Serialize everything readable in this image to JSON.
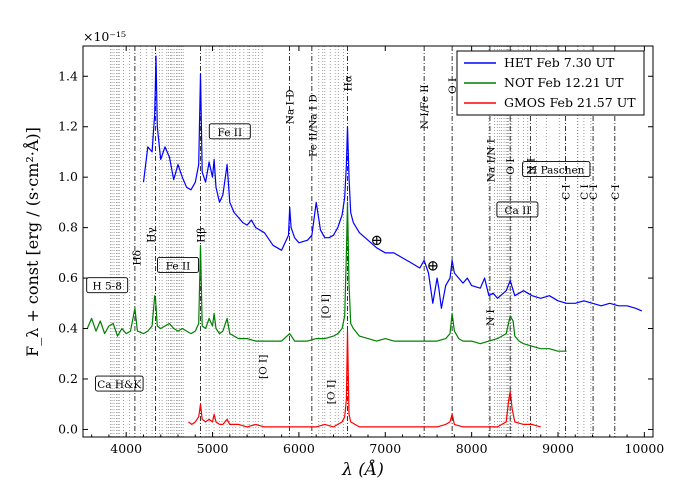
{
  "chart_data": {
    "type": "line",
    "title": "",
    "xlabel": "λ (Å)",
    "ylabel": "F_λ + const [erg / (s·cm²·Å)]",
    "yscale_label": "×10⁻¹⁵",
    "xlim": [
      3500,
      10100
    ],
    "ylim": [
      -0.03,
      1.52
    ],
    "xticks": [
      4000,
      5000,
      6000,
      7000,
      8000,
      9000,
      10000
    ],
    "xtick_labels": [
      "4000",
      "5000",
      "6000",
      "7000",
      "8000",
      "9000",
      "10000"
    ],
    "yticks": [
      0.0,
      0.2,
      0.4,
      0.6,
      0.8,
      1.0,
      1.2,
      1.4
    ],
    "ytick_labels": [
      "0.0",
      "0.2",
      "0.4",
      "0.6",
      "0.8",
      "1.0",
      "1.2",
      "1.4"
    ],
    "legend": {
      "position": "top-right"
    },
    "series": [
      {
        "name": "HET Feb 7.30 UT",
        "color": "#0000ff",
        "x": [
          4200,
          4250,
          4300,
          4330,
          4345,
          4360,
          4400,
          4450,
          4500,
          4550,
          4600,
          4650,
          4700,
          4750,
          4800,
          4840,
          4861,
          4880,
          4920,
          4960,
          5000,
          5018,
          5040,
          5080,
          5120,
          5169,
          5200,
          5250,
          5300,
          5350,
          5400,
          5450,
          5500,
          5600,
          5700,
          5800,
          5880,
          5893,
          5910,
          5950,
          6000,
          6100,
          6150,
          6200,
          6250,
          6300,
          6350,
          6400,
          6450,
          6500,
          6530,
          6550,
          6563,
          6580,
          6600,
          6630,
          6700,
          6800,
          6900,
          7000,
          7100,
          7200,
          7300,
          7400,
          7450,
          7500,
          7550,
          7600,
          7620,
          7650,
          7700,
          7750,
          7774,
          7800,
          7850,
          7900,
          7950,
          8000,
          8100,
          8150,
          8200,
          8250,
          8300,
          8400,
          8446,
          8500,
          8600,
          8700,
          8800,
          8900,
          9000,
          9100,
          9200,
          9300,
          9400,
          9500,
          9600,
          9700,
          9800,
          9900,
          9970
        ],
        "values": [
          0.98,
          1.12,
          1.1,
          1.25,
          1.48,
          1.2,
          1.07,
          1.12,
          1.08,
          0.99,
          1.05,
          1.0,
          0.96,
          0.95,
          0.98,
          1.05,
          1.41,
          1.02,
          0.98,
          1.06,
          1.0,
          1.07,
          0.96,
          0.9,
          0.93,
          1.05,
          0.9,
          0.86,
          0.84,
          0.82,
          0.81,
          0.83,
          0.8,
          0.78,
          0.73,
          0.71,
          0.77,
          0.88,
          0.8,
          0.76,
          0.74,
          0.75,
          0.77,
          0.9,
          0.79,
          0.76,
          0.76,
          0.77,
          0.8,
          0.85,
          0.92,
          1.05,
          1.2,
          1.0,
          0.86,
          0.82,
          0.78,
          0.75,
          0.72,
          0.7,
          0.7,
          0.68,
          0.66,
          0.64,
          0.67,
          0.62,
          0.5,
          0.6,
          0.56,
          0.48,
          0.57,
          0.6,
          0.67,
          0.62,
          0.6,
          0.58,
          0.6,
          0.57,
          0.56,
          0.6,
          0.53,
          0.54,
          0.52,
          0.55,
          0.59,
          0.53,
          0.55,
          0.53,
          0.52,
          0.53,
          0.51,
          0.5,
          0.5,
          0.51,
          0.5,
          0.49,
          0.5,
          0.49,
          0.49,
          0.48,
          0.47
        ]
      },
      {
        "name": "NOT Feb 12.21 UT",
        "color": "#008000",
        "x": [
          3550,
          3600,
          3650,
          3700,
          3750,
          3800,
          3850,
          3900,
          3950,
          4000,
          4050,
          4101,
          4130,
          4200,
          4250,
          4300,
          4330,
          4340,
          4360,
          4400,
          4450,
          4500,
          4550,
          4600,
          4650,
          4700,
          4750,
          4800,
          4840,
          4861,
          4880,
          4920,
          4960,
          5000,
          5018,
          5040,
          5080,
          5120,
          5169,
          5200,
          5250,
          5300,
          5400,
          5500,
          5600,
          5700,
          5800,
          5893,
          5950,
          6000,
          6100,
          6200,
          6300,
          6400,
          6450,
          6500,
          6530,
          6550,
          6563,
          6580,
          6600,
          6630,
          6700,
          6800,
          6900,
          7000,
          7100,
          7200,
          7300,
          7400,
          7500,
          7600,
          7700,
          7750,
          7774,
          7800,
          7850,
          7900,
          8000,
          8100,
          8200,
          8300,
          8400,
          8446,
          8480,
          8500,
          8550,
          8600,
          8700,
          8800,
          8900,
          9000,
          9100
        ],
        "values": [
          0.4,
          0.44,
          0.39,
          0.43,
          0.38,
          0.41,
          0.42,
          0.37,
          0.4,
          0.38,
          0.39,
          0.48,
          0.39,
          0.38,
          0.39,
          0.41,
          0.53,
          0.52,
          0.41,
          0.4,
          0.41,
          0.42,
          0.4,
          0.39,
          0.4,
          0.39,
          0.38,
          0.39,
          0.42,
          0.73,
          0.41,
          0.4,
          0.44,
          0.41,
          0.46,
          0.4,
          0.38,
          0.39,
          0.44,
          0.38,
          0.37,
          0.36,
          0.36,
          0.35,
          0.35,
          0.35,
          0.35,
          0.38,
          0.35,
          0.35,
          0.35,
          0.36,
          0.36,
          0.37,
          0.38,
          0.4,
          0.45,
          0.7,
          0.9,
          0.58,
          0.42,
          0.4,
          0.37,
          0.36,
          0.35,
          0.36,
          0.35,
          0.35,
          0.35,
          0.35,
          0.35,
          0.35,
          0.36,
          0.38,
          0.46,
          0.39,
          0.36,
          0.35,
          0.35,
          0.34,
          0.35,
          0.36,
          0.38,
          0.45,
          0.43,
          0.37,
          0.35,
          0.34,
          0.33,
          0.32,
          0.32,
          0.31,
          0.31
        ]
      },
      {
        "name": "GMOS Feb 21.57 UT",
        "color": "#ff0000",
        "x": [
          4720,
          4760,
          4800,
          4840,
          4861,
          4880,
          4920,
          4960,
          5000,
          5018,
          5040,
          5080,
          5120,
          5169,
          5200,
          5300,
          5400,
          5500,
          5600,
          5700,
          5800,
          5900,
          6000,
          6100,
          6200,
          6300,
          6400,
          6450,
          6500,
          6530,
          6550,
          6563,
          6580,
          6600,
          6650,
          6700,
          6800,
          6900,
          7000,
          7100,
          7200,
          7300,
          7400,
          7500,
          7600,
          7700,
          7750,
          7774,
          7800,
          7900,
          8000,
          8100,
          8200,
          8300,
          8400,
          8430,
          8446,
          8470,
          8500,
          8600,
          8700,
          8800
        ],
        "values": [
          0.03,
          0.02,
          0.03,
          0.05,
          0.1,
          0.04,
          0.03,
          0.04,
          0.03,
          0.06,
          0.03,
          0.02,
          0.02,
          0.04,
          0.02,
          0.02,
          0.01,
          0.02,
          0.01,
          0.01,
          0.01,
          0.01,
          0.01,
          0.01,
          0.01,
          0.02,
          0.01,
          0.02,
          0.03,
          0.05,
          0.12,
          0.39,
          0.06,
          0.03,
          0.02,
          0.01,
          0.01,
          0.01,
          0.01,
          0.01,
          0.01,
          0.01,
          0.01,
          0.01,
          0.01,
          0.02,
          0.03,
          0.06,
          0.02,
          0.01,
          0.01,
          0.01,
          0.01,
          0.01,
          0.03,
          0.12,
          0.15,
          0.08,
          0.03,
          0.02,
          0.02,
          0.01
        ]
      }
    ],
    "dashdot_lines": [
      4101,
      4340,
      4861,
      5890,
      6150,
      6563,
      7450,
      7774,
      8212,
      8446,
      8680,
      9088,
      9406,
      9658
    ],
    "dotted_lines": [
      3820,
      3836,
      3860,
      3889,
      3905,
      3920,
      3970,
      4040,
      4165,
      4233,
      4300,
      4385,
      4416,
      4470,
      4490,
      4515,
      4530,
      4555,
      4584,
      4600,
      4620,
      4640,
      4660,
      4925,
      4960,
      5018,
      5080,
      5110,
      5169,
      5197,
      5235,
      5264,
      5316,
      5362,
      5410,
      5430,
      5470,
      5500,
      5534,
      5575,
      6230,
      6276,
      6300,
      6363,
      6420,
      6456,
      6517,
      8200,
      8265,
      8298,
      8325,
      8345,
      8375,
      8400,
      8414,
      8430,
      8450,
      8465,
      8540,
      8600,
      8650,
      8750,
      8865,
      9015,
      9225,
      9230,
      9300,
      9380
    ],
    "line_labels": [
      {
        "text": "Na I D",
        "x": 5890,
        "y": 1.21
      },
      {
        "text": "Fe II/Na I D",
        "x": 6160,
        "y": 1.08
      },
      {
        "text": "Hα",
        "x": 6560,
        "y": 1.34
      },
      {
        "text": "N I/Fe II",
        "x": 7450,
        "y": 1.19
      },
      {
        "text": "O I",
        "x": 7774,
        "y": 1.33
      },
      {
        "text": "Na I/N I",
        "x": 8220,
        "y": 0.98
      },
      {
        "text": "O I",
        "x": 8446,
        "y": 1.01
      },
      {
        "text": "N I",
        "x": 8680,
        "y": 1.01
      },
      {
        "text": "C I",
        "x": 9088,
        "y": 0.91
      },
      {
        "text": "C I",
        "x": 9300,
        "y": 0.91
      },
      {
        "text": "C I",
        "x": 9406,
        "y": 0.91
      },
      {
        "text": "C I",
        "x": 9658,
        "y": 0.91
      },
      {
        "text": "Hγ",
        "x": 4280,
        "y": 0.74
      },
      {
        "text": "Hβ",
        "x": 4861,
        "y": 0.74
      },
      {
        "text": "Hδ",
        "x": 4120,
        "y": 0.65
      },
      {
        "text": "N I",
        "x": 8210,
        "y": 0.41
      },
      {
        "text": "[O I]",
        "x": 5577,
        "y": 0.2
      },
      {
        "text": "[O I]",
        "x": 6300,
        "y": 0.44
      },
      {
        "text": "[O I]",
        "x": 6363,
        "y": 0.1
      }
    ],
    "box_labels": [
      {
        "text": "Fe II",
        "x": 5200,
        "y": 1.18
      },
      {
        "text": "Fe II",
        "x": 4600,
        "y": 0.65
      },
      {
        "text": "H 5-8",
        "x": 3780,
        "y": 0.57
      },
      {
        "text": "Ca H&K",
        "x": 3920,
        "y": 0.18
      },
      {
        "text": "Ca II",
        "x": 8530,
        "y": 0.87
      },
      {
        "text": "H Paschen",
        "x": 8980,
        "y": 1.03
      }
    ],
    "earth_symbols": [
      {
        "text": "⊕",
        "x": 6900,
        "y": 0.75
      },
      {
        "text": "⊕",
        "x": 7550,
        "y": 0.65
      }
    ]
  }
}
